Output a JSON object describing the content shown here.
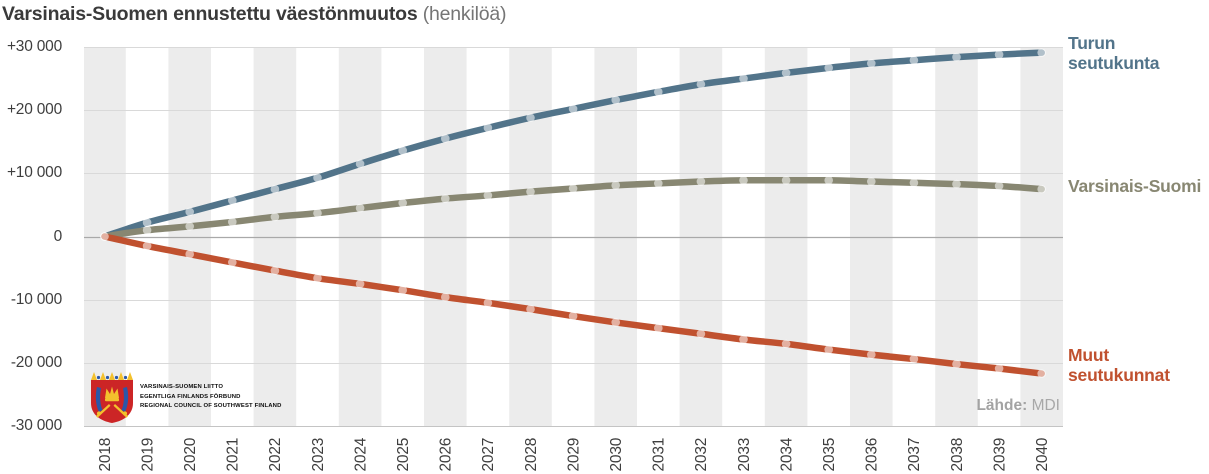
{
  "title": {
    "main": "Varsinais-Suomen ennustettu väestönmuutos",
    "unit": "(henkilöä)"
  },
  "source": {
    "label": "Lähde:",
    "value": "MDI"
  },
  "logo": {
    "line1": "VARSINAIS-SUOMEN LIITTO",
    "line2": "EGENTLIGA FINLANDS FÖRBUND",
    "line3": "REGIONAL COUNCIL OF SOUTHWEST FINLAND"
  },
  "colors": {
    "stripe": "#ececec",
    "grid": "#d9d9d9",
    "zero_line": "#a9a9a9",
    "axis_line": "#c4c4c4",
    "marker_fill": "rgba(255,255,255,0.55)"
  },
  "chart_data": {
    "type": "line",
    "title": "Varsinais-Suomen ennustettu väestönmuutos (henkilöä)",
    "x": [
      2018,
      2019,
      2020,
      2021,
      2022,
      2023,
      2024,
      2025,
      2026,
      2027,
      2028,
      2029,
      2030,
      2031,
      2032,
      2033,
      2034,
      2035,
      2036,
      2037,
      2038,
      2039,
      2040
    ],
    "series": [
      {
        "name": "Turun seutukunta",
        "color": "#52748a",
        "values": [
          0,
          2200,
          3900,
          5700,
          7500,
          9300,
          11500,
          13600,
          15500,
          17200,
          18800,
          20200,
          21600,
          22900,
          24100,
          25000,
          25900,
          26700,
          27400,
          27900,
          28400,
          28800,
          29100
        ]
      },
      {
        "name": "Varsinais-Suomi",
        "color": "#888772",
        "values": [
          0,
          1000,
          1600,
          2300,
          3100,
          3700,
          4500,
          5300,
          6000,
          6500,
          7100,
          7600,
          8100,
          8400,
          8700,
          8900,
          8900,
          8900,
          8700,
          8500,
          8300,
          8000,
          7500
        ]
      },
      {
        "name": "Muut seutukunnat",
        "color": "#c0512f",
        "values": [
          0,
          -1500,
          -2800,
          -4100,
          -5400,
          -6600,
          -7500,
          -8500,
          -9600,
          -10500,
          -11500,
          -12600,
          -13600,
          -14500,
          -15400,
          -16300,
          -17000,
          -17900,
          -18700,
          -19400,
          -20200,
          -20900,
          -21700
        ]
      }
    ],
    "ylim": [
      -30000,
      30000
    ],
    "ytick_step": 10000,
    "ytick_format": "signed, thousands separated by space (e.g. +30 000)",
    "grid": "horizontal",
    "background_stripes": "vertical light-gray bands on even years",
    "legend_position": "right, colored series labels",
    "marker": "circle, semi-transparent light dot on each year"
  }
}
